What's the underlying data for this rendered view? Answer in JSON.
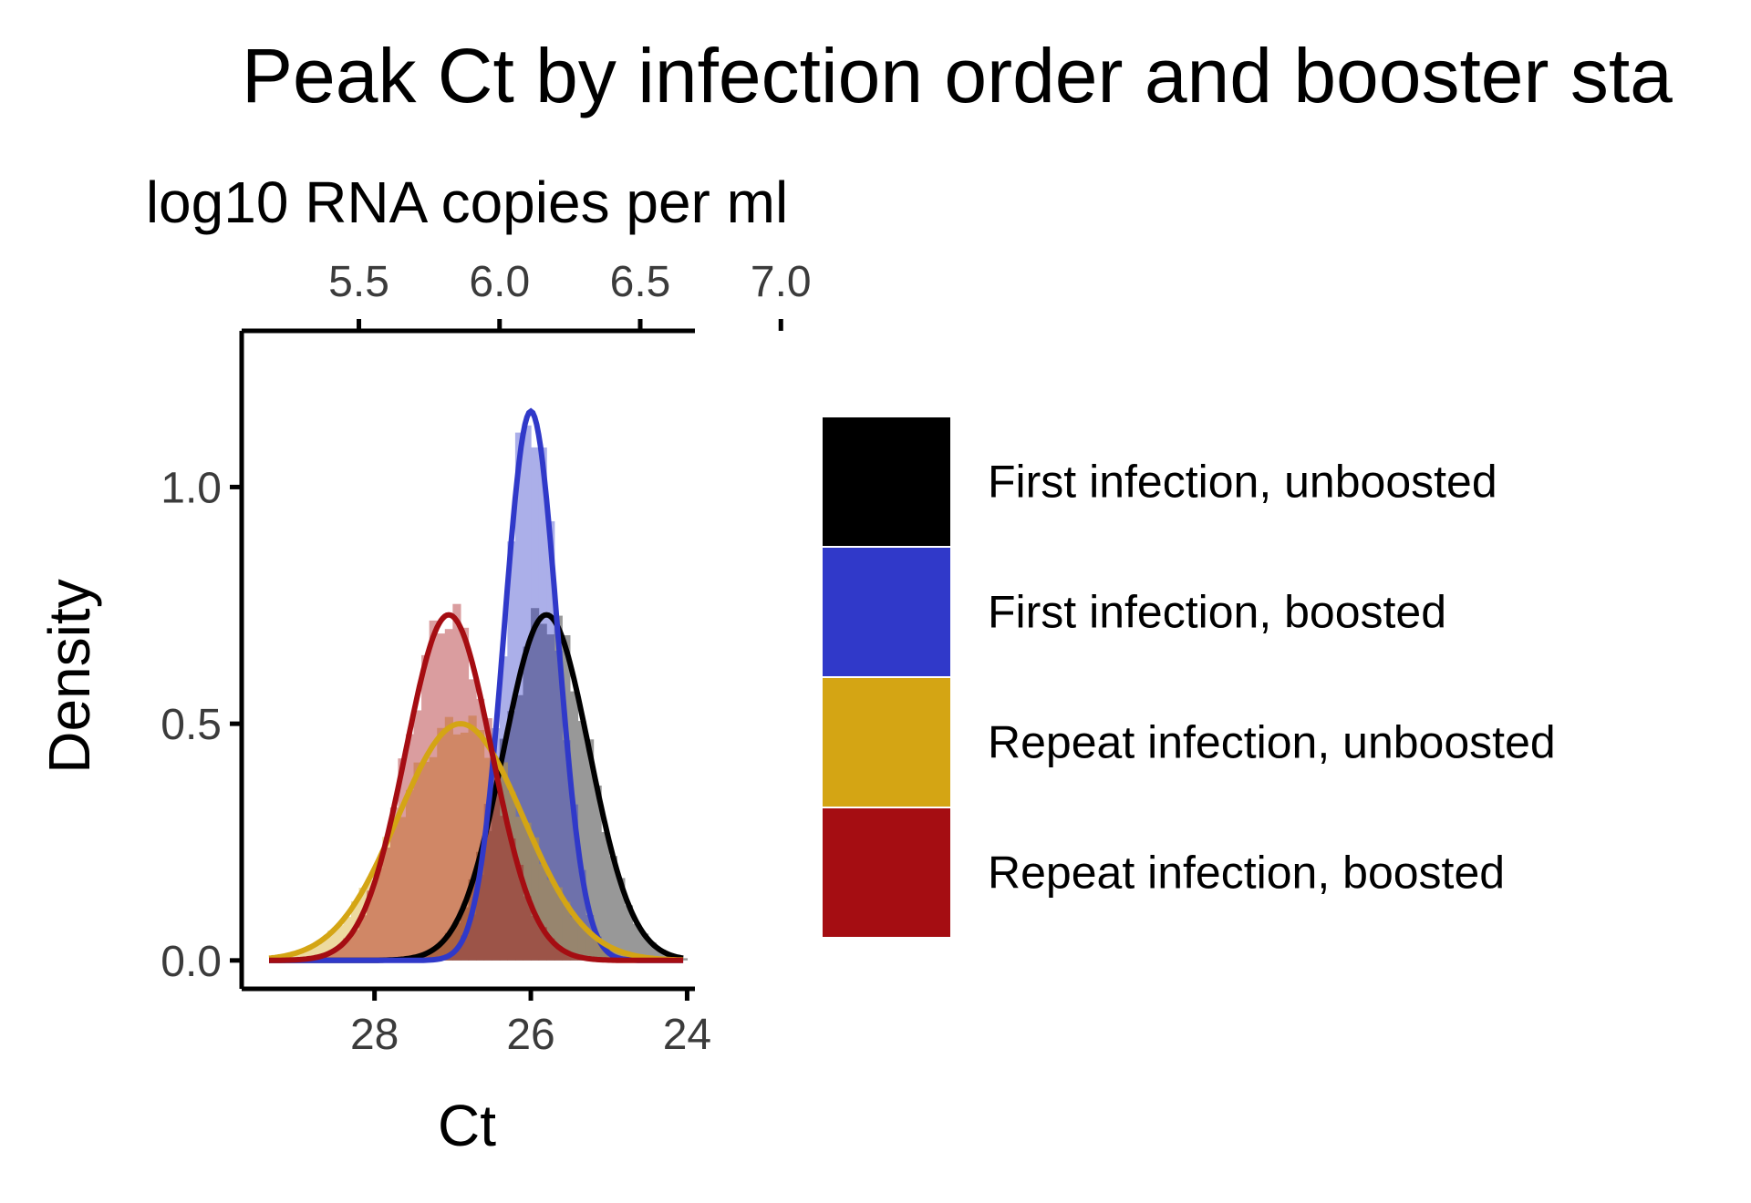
{
  "chart_data": {
    "type": "histogram-density",
    "title": "Peak Ct by infection order and booster sta",
    "xlabel": "Ct",
    "ylabel": "Density",
    "secondary_xlabel": "log10 RNA copies per ml",
    "x_reversed": true,
    "xlim": [
      29.7,
      23.9
    ],
    "ylim": [
      -0.06,
      1.33
    ],
    "x_ticks": [
      28,
      26,
      24
    ],
    "x_tick_labels": [
      "28",
      "26",
      "24"
    ],
    "y_ticks": [
      0.0,
      0.5,
      1.0
    ],
    "y_tick_labels": [
      "0.0",
      "0.5",
      "1.0"
    ],
    "secondary_x_ticks": [
      {
        "ct": 28.2,
        "label": "5.5"
      },
      {
        "ct": 26.4,
        "label": "6.0"
      },
      {
        "ct": 24.6,
        "label": "6.5"
      },
      {
        "ct": 22.8,
        "label": "7.0"
      }
    ],
    "grid": false,
    "legend_position": "right",
    "series": [
      {
        "name": "First infection, unboosted",
        "color": "#000000",
        "mean": 25.8,
        "sd": 0.55,
        "peak": 0.73
      },
      {
        "name": "First infection, boosted",
        "color": "#3039c9",
        "mean": 26.0,
        "sd": 0.34,
        "peak": 1.16
      },
      {
        "name": "Repeat infection, unboosted",
        "color": "#d4a514",
        "mean": 26.9,
        "sd": 0.8,
        "peak": 0.5
      },
      {
        "name": "Repeat infection, boosted",
        "color": "#a50d12",
        "mean": 27.05,
        "sd": 0.55,
        "peak": 0.73
      }
    ]
  }
}
